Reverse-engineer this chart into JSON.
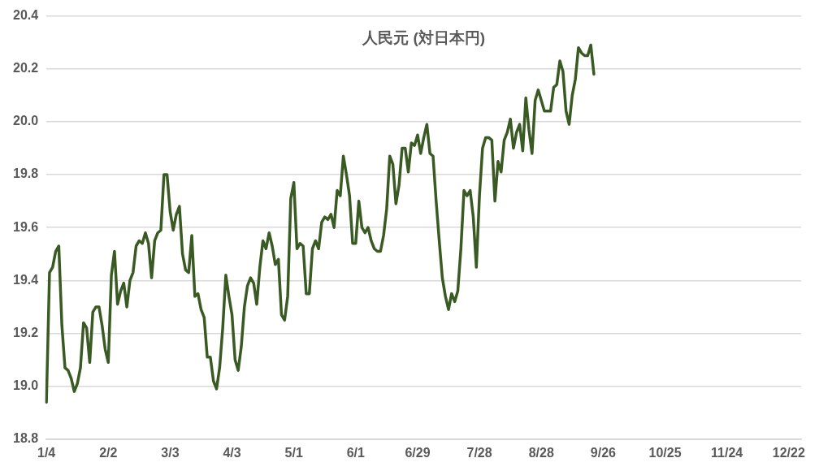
{
  "chart_data": {
    "type": "line",
    "title": "人民元 (対日本円)",
    "categories": [
      "1/4",
      null,
      null,
      null,
      null,
      null,
      null,
      null,
      null,
      null,
      null,
      null,
      null,
      null,
      null,
      null,
      null,
      null,
      null,
      null,
      "2/2",
      null,
      null,
      null,
      null,
      null,
      null,
      null,
      null,
      null,
      null,
      null,
      null,
      null,
      null,
      null,
      null,
      null,
      null,
      null,
      "3/3",
      null,
      null,
      null,
      null,
      null,
      null,
      null,
      null,
      null,
      null,
      null,
      null,
      null,
      null,
      null,
      null,
      null,
      null,
      null,
      "4/3",
      null,
      null,
      null,
      null,
      null,
      null,
      null,
      null,
      null,
      null,
      null,
      null,
      null,
      null,
      null,
      null,
      null,
      null,
      null,
      "5/1",
      null,
      null,
      null,
      null,
      null,
      null,
      null,
      null,
      null,
      null,
      null,
      null,
      null,
      null,
      null,
      null,
      null,
      null,
      null,
      "6/1",
      null,
      null,
      null,
      null,
      null,
      null,
      null,
      null,
      null,
      null,
      null,
      null,
      null,
      null,
      null,
      null,
      null,
      null,
      null,
      "6/29",
      null,
      null,
      null,
      null,
      null,
      null,
      null,
      null,
      null,
      null,
      null,
      null,
      null,
      null,
      null,
      null,
      null,
      null,
      null,
      "7/28",
      null,
      null,
      null,
      null,
      null,
      null,
      null,
      null,
      null,
      null,
      null,
      null,
      null,
      null,
      null,
      null,
      null,
      null,
      null,
      "8/28",
      null,
      null,
      null,
      null,
      null,
      null,
      null,
      null,
      null,
      null,
      null,
      null,
      null,
      null,
      null,
      null,
      null,
      null,
      null,
      "9/26",
      null,
      null,
      null,
      null,
      null,
      null,
      null,
      null,
      null,
      null,
      null,
      null,
      null,
      null,
      null,
      null,
      null,
      null,
      null,
      "10/25",
      null,
      null,
      null,
      null,
      null,
      null,
      null,
      null,
      null,
      null,
      null,
      null,
      null,
      null,
      null,
      null,
      null,
      null,
      null,
      "11/24",
      null,
      null,
      null,
      null,
      null,
      null,
      null,
      null,
      null,
      null,
      null,
      null,
      null,
      null,
      null,
      null,
      null,
      null,
      null,
      "12/22",
      null,
      null,
      null,
      null
    ],
    "values": [
      18.94,
      19.43,
      19.45,
      19.51,
      19.53,
      19.23,
      19.07,
      19.06,
      19.03,
      18.98,
      19.01,
      19.07,
      19.24,
      19.22,
      19.09,
      19.28,
      19.3,
      19.3,
      19.23,
      19.14,
      19.09,
      19.42,
      19.51,
      19.31,
      19.36,
      19.39,
      19.3,
      19.4,
      19.43,
      19.53,
      19.55,
      19.54,
      19.58,
      19.54,
      19.41,
      19.55,
      19.58,
      19.59,
      19.8,
      19.8,
      19.66,
      19.59,
      19.65,
      19.68,
      19.5,
      19.44,
      19.43,
      19.57,
      19.34,
      19.35,
      19.29,
      19.26,
      19.11,
      19.11,
      19.02,
      18.99,
      19.07,
      19.22,
      19.42,
      19.34,
      19.27,
      19.1,
      19.06,
      19.15,
      19.3,
      19.38,
      19.41,
      19.39,
      19.31,
      19.45,
      19.55,
      19.52,
      19.58,
      19.53,
      19.46,
      19.48,
      19.27,
      19.25,
      19.34,
      19.71,
      19.77,
      19.52,
      19.54,
      19.53,
      19.35,
      19.35,
      19.52,
      19.55,
      19.52,
      19.62,
      19.64,
      19.63,
      19.65,
      19.6,
      19.74,
      19.72,
      19.87,
      19.8,
      19.72,
      19.54,
      19.54,
      19.7,
      19.6,
      19.58,
      19.6,
      19.55,
      19.52,
      19.51,
      19.51,
      19.57,
      19.67,
      19.87,
      19.84,
      19.69,
      19.76,
      19.9,
      19.9,
      19.81,
      19.92,
      19.91,
      19.95,
      19.88,
      19.94,
      19.99,
      19.88,
      19.87,
      19.7,
      19.55,
      19.41,
      19.34,
      19.29,
      19.35,
      19.32,
      19.36,
      19.52,
      19.74,
      19.72,
      19.74,
      19.64,
      19.45,
      19.72,
      19.9,
      19.94,
      19.94,
      19.93,
      19.7,
      19.85,
      19.81,
      19.93,
      19.96,
      20.01,
      19.9,
      19.96,
      19.99,
      19.89,
      20.09,
      19.97,
      19.88,
      20.08,
      20.12,
      20.08,
      20.04,
      20.04,
      20.04,
      20.13,
      20.14,
      20.23,
      20.19,
      20.04,
      19.99,
      20.1,
      20.16,
      20.28,
      20.26,
      20.25,
      20.25,
      20.29,
      20.18,
      null,
      null,
      null,
      null,
      null,
      null,
      null,
      null,
      null,
      null,
      null,
      null,
      null,
      null,
      null,
      null,
      null,
      null,
      null,
      null,
      null,
      null,
      null,
      null,
      null,
      null,
      null,
      null,
      null,
      null,
      null,
      null,
      null,
      null,
      null,
      null,
      null,
      null,
      null,
      null,
      null,
      null,
      null,
      null,
      null,
      null,
      null,
      null,
      null,
      null,
      null,
      null,
      null,
      null,
      null,
      null,
      null,
      null,
      null,
      null,
      null,
      null,
      null,
      null,
      null,
      null,
      null
    ],
    "color": "#3a5a23",
    "marker": "none",
    "line_style": "solid",
    "ylim": [
      18.8,
      20.4
    ],
    "yticks": [
      18.8,
      {
        "value": 19,
        "label": "19.0"
      },
      19.2,
      19.4,
      19.6,
      19.8,
      {
        "value": 20,
        "label": "20.0"
      },
      20.2,
      20.4
    ],
    "grid": "y",
    "legend": false
  }
}
